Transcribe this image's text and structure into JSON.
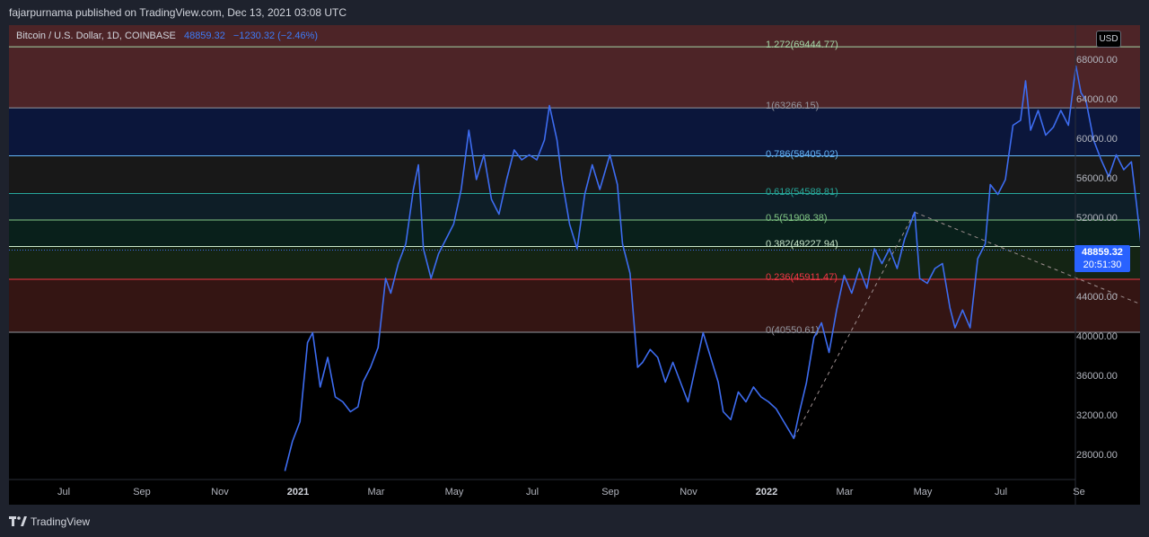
{
  "publication": {
    "text": "fajarpurnama published on TradingView.com, Dec 13, 2021 03:08 UTC"
  },
  "symbol": {
    "name": "Bitcoin / U.S. Dollar, 1D, COINBASE",
    "price": "48859.32",
    "change": "−1230.32 (−2.46%)"
  },
  "currency_button": "USD",
  "last_price": {
    "value": "48859.32",
    "countdown": "20:51:30"
  },
  "fibonacci": [
    {
      "label": "1.272(69444.77)",
      "price": 69444.77,
      "color": "#a5d6a7",
      "fill": "#5a2a2e"
    },
    {
      "label": "1(63266.15)",
      "price": 63266.15,
      "color": "#9598a1",
      "fill": "#0d1a45"
    },
    {
      "label": "0.786(58405.02)",
      "price": 58405.02,
      "color": "#64b5f6",
      "fill": "#1c1c1c"
    },
    {
      "label": "0.618(54588.81)",
      "price": 54588.81,
      "color": "#26a69a",
      "fill": "#11232e"
    },
    {
      "label": "0.5(51908.38)",
      "price": 51908.38,
      "color": "#81c784",
      "fill": "#0a2620"
    },
    {
      "label": "0.382(49227.94)",
      "price": 49227.94,
      "color": "#c8e6c9",
      "fill": "#182a17"
    },
    {
      "label": "0.236(45911.47)",
      "price": 45911.47,
      "color": "#f23645",
      "fill": "#1a2414"
    },
    {
      "label": "0(40550.61)",
      "price": 40550.61,
      "color": "#9598a1",
      "fill": "#3a1414"
    }
  ],
  "price_axis": [
    "68000.00",
    "64000.00",
    "60000.00",
    "56000.00",
    "52000.00",
    "48000.00",
    "44000.00",
    "40000.00",
    "36000.00",
    "32000.00",
    "28000.00"
  ],
  "time_axis": [
    {
      "label": "Jul",
      "year": false
    },
    {
      "label": "Sep",
      "year": false
    },
    {
      "label": "Nov",
      "year": false
    },
    {
      "label": "2021",
      "year": true
    },
    {
      "label": "Mar",
      "year": false
    },
    {
      "label": "May",
      "year": false
    },
    {
      "label": "Jul",
      "year": false
    },
    {
      "label": "Sep",
      "year": false
    },
    {
      "label": "Nov",
      "year": false
    },
    {
      "label": "2022",
      "year": true
    },
    {
      "label": "Mar",
      "year": false
    },
    {
      "label": "May",
      "year": false
    },
    {
      "label": "Jul",
      "year": false
    },
    {
      "label": "Se",
      "year": false
    }
  ],
  "footer": {
    "brand": "TradingView"
  },
  "chart_data": {
    "type": "line",
    "series": [
      {
        "values": [
          [
            "2020-12-30",
            26500
          ],
          [
            "2021-01-02",
            29500
          ],
          [
            "2021-01-05",
            31500
          ],
          [
            "2021-01-08",
            39500
          ],
          [
            "2021-01-10",
            40500
          ],
          [
            "2021-01-13",
            35000
          ],
          [
            "2021-01-16",
            38000
          ],
          [
            "2021-01-19",
            34000
          ],
          [
            "2021-01-22",
            33500
          ],
          [
            "2021-01-25",
            32500
          ],
          [
            "2021-01-28",
            33000
          ],
          [
            "2021-01-30",
            35500
          ],
          [
            "2021-02-02",
            37000
          ],
          [
            "2021-02-05",
            39000
          ],
          [
            "2021-02-08",
            46000
          ],
          [
            "2021-02-10",
            44500
          ],
          [
            "2021-02-13",
            47500
          ],
          [
            "2021-02-16",
            49500
          ],
          [
            "2021-02-19",
            55000
          ],
          [
            "2021-02-21",
            57500
          ],
          [
            "2021-02-23",
            49000
          ],
          [
            "2021-02-26",
            46000
          ],
          [
            "2021-03-01",
            48500
          ],
          [
            "2021-03-04",
            50000
          ],
          [
            "2021-03-07",
            51500
          ],
          [
            "2021-03-10",
            55000
          ],
          [
            "2021-03-13",
            61000
          ],
          [
            "2021-03-16",
            56000
          ],
          [
            "2021-03-19",
            58500
          ],
          [
            "2021-03-22",
            54000
          ],
          [
            "2021-03-25",
            52500
          ],
          [
            "2021-03-28",
            56000
          ],
          [
            "2021-03-31",
            59000
          ],
          [
            "2021-04-03",
            58000
          ],
          [
            "2021-04-06",
            58500
          ],
          [
            "2021-04-09",
            58000
          ],
          [
            "2021-04-12",
            60000
          ],
          [
            "2021-04-14",
            63500
          ],
          [
            "2021-04-17",
            60000
          ],
          [
            "2021-04-19",
            56000
          ],
          [
            "2021-04-22",
            51500
          ],
          [
            "2021-04-25",
            49000
          ],
          [
            "2021-04-28",
            54500
          ],
          [
            "2021-05-01",
            57500
          ],
          [
            "2021-05-04",
            55000
          ],
          [
            "2021-05-08",
            58500
          ],
          [
            "2021-05-11",
            55500
          ],
          [
            "2021-05-13",
            49500
          ],
          [
            "2021-05-16",
            46500
          ],
          [
            "2021-05-19",
            37000
          ],
          [
            "2021-05-21",
            37500
          ],
          [
            "2021-05-24",
            38800
          ],
          [
            "2021-05-27",
            38000
          ],
          [
            "2021-05-30",
            35500
          ],
          [
            "2021-06-02",
            37500
          ],
          [
            "2021-06-05",
            35500
          ],
          [
            "2021-06-08",
            33500
          ],
          [
            "2021-06-11",
            37000
          ],
          [
            "2021-06-14",
            40500
          ],
          [
            "2021-06-17",
            38000
          ],
          [
            "2021-06-20",
            35500
          ],
          [
            "2021-06-22",
            32500
          ],
          [
            "2021-06-25",
            31700
          ],
          [
            "2021-06-28",
            34500
          ],
          [
            "2021-07-01",
            33500
          ],
          [
            "2021-07-04",
            35000
          ],
          [
            "2021-07-07",
            34000
          ],
          [
            "2021-07-10",
            33500
          ],
          [
            "2021-07-13",
            32800
          ],
          [
            "2021-07-16",
            31500
          ],
          [
            "2021-07-20",
            29800
          ],
          [
            "2021-07-22",
            32200
          ],
          [
            "2021-07-25",
            35400
          ],
          [
            "2021-07-28",
            40000
          ],
          [
            "2021-07-31",
            41500
          ],
          [
            "2021-08-03",
            38500
          ],
          [
            "2021-08-06",
            42800
          ],
          [
            "2021-08-09",
            46300
          ],
          [
            "2021-08-12",
            44500
          ],
          [
            "2021-08-15",
            47000
          ],
          [
            "2021-08-18",
            45000
          ],
          [
            "2021-08-21",
            49000
          ],
          [
            "2021-08-24",
            47500
          ],
          [
            "2021-08-27",
            49000
          ],
          [
            "2021-08-30",
            47000
          ],
          [
            "2021-09-02",
            50000
          ],
          [
            "2021-09-06",
            52700
          ],
          [
            "2021-09-08",
            46000
          ],
          [
            "2021-09-11",
            45500
          ],
          [
            "2021-09-14",
            47000
          ],
          [
            "2021-09-17",
            47500
          ],
          [
            "2021-09-20",
            43000
          ],
          [
            "2021-09-22",
            41000
          ],
          [
            "2021-09-25",
            42800
          ],
          [
            "2021-09-28",
            41000
          ],
          [
            "2021-10-01",
            48000
          ],
          [
            "2021-10-04",
            49500
          ],
          [
            "2021-10-06",
            55500
          ],
          [
            "2021-10-09",
            54500
          ],
          [
            "2021-10-12",
            56000
          ],
          [
            "2021-10-15",
            61500
          ],
          [
            "2021-10-18",
            62000
          ],
          [
            "2021-10-20",
            66000
          ],
          [
            "2021-10-22",
            61000
          ],
          [
            "2021-10-25",
            63000
          ],
          [
            "2021-10-28",
            60500
          ],
          [
            "2021-10-31",
            61300
          ],
          [
            "2021-11-03",
            63000
          ],
          [
            "2021-11-06",
            61500
          ],
          [
            "2021-11-09",
            67500
          ],
          [
            "2021-11-11",
            64800
          ],
          [
            "2021-11-13",
            64000
          ],
          [
            "2021-11-16",
            60000
          ],
          [
            "2021-11-19",
            58000
          ],
          [
            "2021-11-22",
            56300
          ],
          [
            "2021-11-25",
            58500
          ],
          [
            "2021-11-28",
            57000
          ],
          [
            "2021-12-01",
            57800
          ],
          [
            "2021-12-03",
            53600
          ],
          [
            "2021-12-05",
            49000
          ],
          [
            "2021-12-07",
            50600
          ],
          [
            "2021-12-09",
            47600
          ],
          [
            "2021-12-11",
            49400
          ],
          [
            "2021-12-12",
            50100
          ],
          [
            "2021-12-13",
            48859
          ]
        ]
      }
    ],
    "ylim": [
      25000,
      71000
    ],
    "y_ticks": [
      28000,
      32000,
      36000,
      40000,
      44000,
      48000,
      52000,
      56000,
      60000,
      64000,
      68000
    ],
    "fib_anchor_low": [
      "2021-07-20",
      29800
    ],
    "fib_anchor_high": [
      "2021-09-06",
      52700
    ],
    "fib_anchor_end": [
      "2022-01-01",
      40550.61
    ],
    "colors": {
      "line": "#3d6cf0",
      "background": "#000000"
    },
    "grid": false
  }
}
